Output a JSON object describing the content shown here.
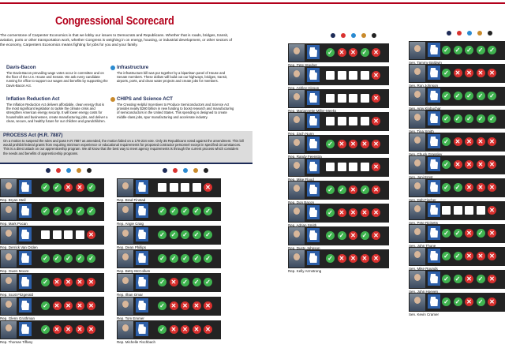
{
  "title": "Congressional Scorecard",
  "intro": "The cornerstone of Carpenter Economics is that we lobby our issues to Democrats and Republicans. Whether that is roads, bridges, transit, aviation, ports or other transportation work, whether Congress is weighing in on energy, housing, or industrial development, or other sectors of the economy, Carpenters Economics means fighting for jobs for you and your family.",
  "issues": [
    {
      "title": "Davis-Bacon",
      "color": "#1d2b57",
      "text": "The Davis-Bacon prevailing wage votes occur in committee and on the floor of the U.S. House and Senate. We ask every candidate running for office to support our wages and benefits by supporting the Davis-Bacon Act."
    },
    {
      "title": "Infrastructure",
      "color": "#2a8ad0",
      "text": "The infrastructure bill was put together by a bipartisan panel of House and Senate members. These dollars will build out our highways, bridges, transit, airports, ports, and clean water projects and create jobs for members."
    },
    {
      "title": "Inflation Reduction Act",
      "color": "#d8322f",
      "text": "The Inflation Reduction Act delivers affordable, clean energy that is the most significant legislation to tackle the climate crisis and strengthen American energy security. It will lower energy costs for households and businesses, create manufacturing jobs, and deliver a clean, secure, and healthy future for our children and grandchildren."
    },
    {
      "title": "CHIPS and Science ACT",
      "color": "#c98a2b",
      "text": "The Creating Helpful Incentives to Produce Semiconductors and Science Act provides nearly $280 billion in new funding to boost research and manufacturing of semiconductors in the United States. This spending is designed to create middle-class jobs, spur manufacturing and accelerate industry."
    }
  ],
  "procss": {
    "title": "PROCESS Act (H.R. 7887)",
    "text": "On a motion to suspend the rules and pass H.R.7887 as amended, the motion failed on a 178-234 vote. Only 35 Republicans voted against the amendment. This bill would prohibit federal grants from requiring minimum experience or educational requirements for proposed contractor personnel except in specified circumstances. This is a direct attack on our apprenticeship program. We all know that the best way to meet agency requirements is through the current process which considers the needs and benefits of apprenticeship programs."
  },
  "legend_colors": [
    "#1d2b57",
    "#d8322f",
    "#2a8ad0",
    "#c98a2b",
    "#222222"
  ],
  "colors": {
    "yes": "#3fb34f",
    "no": "#d9302e",
    "state": "#2d5fa8"
  },
  "panels": [
    {
      "id": "p1",
      "members": [
        {
          "name": "Rep. Bryan Steil",
          "votes": [
            "yes",
            "yes",
            "no",
            "no",
            "yes"
          ]
        },
        {
          "name": "Rep. Mark Pocan",
          "votes": [
            "yes",
            "yes",
            "yes",
            "yes",
            "yes"
          ]
        },
        {
          "name": "Rep. Derrick Van Orden",
          "votes": [
            "blank",
            "blank",
            "blank",
            "blank",
            "no"
          ]
        },
        {
          "name": "Rep. Gwen Moore",
          "votes": [
            "yes",
            "yes",
            "yes",
            "yes",
            "yes"
          ]
        },
        {
          "name": "Rep. Scott Fitzgerald",
          "votes": [
            "yes",
            "no",
            "no",
            "no",
            "no"
          ]
        },
        {
          "name": "Rep. Glenn Grothman",
          "votes": [
            "yes",
            "no",
            "no",
            "no",
            "no"
          ]
        },
        {
          "name": "Rep. Thomas Tiffany",
          "votes": [
            "yes",
            "no",
            "no",
            "no",
            "no"
          ]
        }
      ]
    },
    {
      "id": "p2",
      "members": [
        {
          "name": "Rep. Brad Finstad",
          "votes": [
            "blank",
            "blank",
            "blank",
            "blank",
            "no"
          ]
        },
        {
          "name": "Rep. Angie Craig",
          "votes": [
            "yes",
            "yes",
            "yes",
            "yes",
            "yes"
          ]
        },
        {
          "name": "Rep. Dean Phillips",
          "votes": [
            "yes",
            "yes",
            "yes",
            "yes",
            "yes"
          ]
        },
        {
          "name": "Rep. Betty McCollum",
          "votes": [
            "yes",
            "yes",
            "yes",
            "yes",
            "yes"
          ]
        },
        {
          "name": "Rep. Ilhan Omar",
          "votes": [
            "yes",
            "no",
            "yes",
            "yes",
            "yes"
          ]
        },
        {
          "name": "Rep. Tom Emmer",
          "votes": [
            "yes",
            "no",
            "no",
            "no",
            "no"
          ]
        },
        {
          "name": "Rep. Michelle Fischbach",
          "votes": [
            "yes",
            "no",
            "no",
            "no",
            "no"
          ]
        }
      ]
    },
    {
      "id": "p3",
      "members": [
        {
          "name": "Rep. Pete Stauber",
          "votes": [
            "yes",
            "no",
            "no",
            "yes",
            "no"
          ]
        },
        {
          "name": "Rep. Ashley Hinson",
          "votes": [
            "blank",
            "blank",
            "blank",
            "blank",
            "no"
          ]
        },
        {
          "name": "Rep. Mariannette Miller-Meeks",
          "votes": [
            "blank",
            "blank",
            "blank",
            "blank",
            "no"
          ]
        },
        {
          "name": "Rep. Zach Nunn",
          "votes": [
            "blank",
            "blank",
            "blank",
            "blank",
            "no"
          ]
        },
        {
          "name": "Rep. Randy Feenstra",
          "votes": [
            "yes",
            "no",
            "no",
            "no",
            "no"
          ]
        },
        {
          "name": "Rep. Mike Flood",
          "votes": [
            "blank",
            "blank",
            "blank",
            "blank",
            "no"
          ]
        },
        {
          "name": "Rep. Don Bacon",
          "votes": [
            "yes",
            "yes",
            "no",
            "yes",
            "no"
          ]
        },
        {
          "name": "Rep. Adrian Smith",
          "votes": [
            "yes",
            "no",
            "no",
            "no",
            "no"
          ]
        },
        {
          "name": "Rep. Dusty Johnson",
          "votes": [
            "yes",
            "yes",
            "no",
            "yes",
            "no"
          ]
        },
        {
          "name": "Rep. Kelly Armstrong",
          "votes": [
            "yes",
            "no",
            "no",
            "no",
            "no"
          ]
        }
      ]
    },
    {
      "id": "p4",
      "members": [
        {
          "name": "Sen. Tammy Baldwin",
          "votes": [
            "yes",
            "yes",
            "yes",
            "yes",
            "yes"
          ]
        },
        {
          "name": "Sen. Ron Johnson",
          "votes": [
            "yes",
            "no",
            "no",
            "no",
            "no"
          ]
        },
        {
          "name": "Sen. Amy Klobuchar",
          "votes": [
            "yes",
            "yes",
            "yes",
            "yes",
            "yes"
          ]
        },
        {
          "name": "Sen. Tina Smith",
          "votes": [
            "yes",
            "yes",
            "yes",
            "yes",
            "yes"
          ]
        },
        {
          "name": "Sen. Chuck Grassley",
          "votes": [
            "yes",
            "no",
            "no",
            "no",
            "no"
          ]
        },
        {
          "name": "Sen. Joni Ernst",
          "votes": [
            "yes",
            "no",
            "no",
            "no",
            "no"
          ]
        },
        {
          "name": "Sen. Deb Fischer",
          "votes": [
            "yes",
            "yes",
            "no",
            "no",
            "no"
          ]
        },
        {
          "name": "Sen. Pete Ricketts",
          "votes": [
            "blank",
            "blank",
            "blank",
            "blank",
            "no"
          ]
        },
        {
          "name": "Sen. John Thune",
          "votes": [
            "yes",
            "yes",
            "no",
            "yes",
            "no"
          ]
        },
        {
          "name": "Sen. Mike Rounds",
          "votes": [
            "yes",
            "yes",
            "no",
            "no",
            "no"
          ]
        },
        {
          "name": "Sen. John Hoeven",
          "votes": [
            "yes",
            "yes",
            "no",
            "yes",
            "no"
          ]
        },
        {
          "name": "Sen. Kevin Cramer",
          "votes": [
            "yes",
            "yes",
            "no",
            "yes",
            "no"
          ]
        }
      ]
    }
  ]
}
